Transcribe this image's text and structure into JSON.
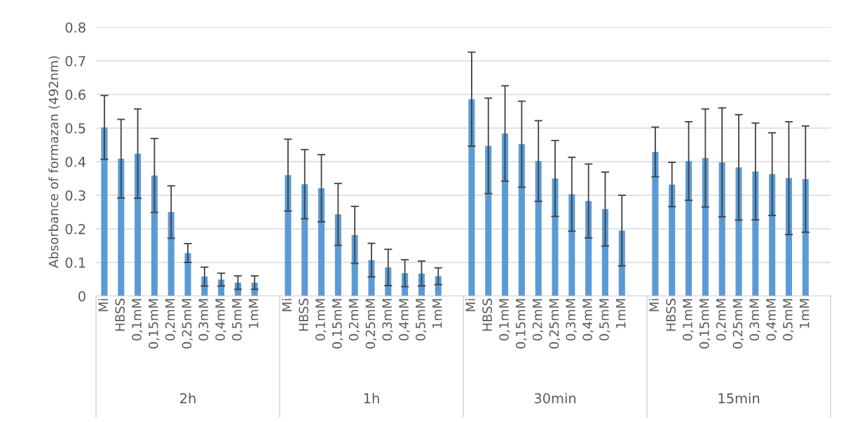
{
  "chart_data": {
    "type": "bar",
    "ylabel": "Absorbance of formazan (492nm)",
    "categories": [
      "Mi",
      "HBSS",
      "0,1mM",
      "0,15mM",
      "0,2mM",
      "0,25mM",
      "0,3mM",
      "0,4mM",
      "0,5mM",
      "1mM",
      null,
      "Mi",
      "HBSS",
      "0,1mM",
      "0,15mM",
      "0,2mM",
      "0,25mM",
      "0,3mM",
      "0,4mM",
      "0,5mM",
      "1mM",
      null,
      "Mi",
      "HBSS",
      "0,1mM",
      "0,15mM",
      "0,2mM",
      "0,25mM",
      "0,3mM",
      "0,4mM",
      "0,5mM",
      "1mM",
      null,
      "Mi",
      "HBSS",
      "0,1mM",
      "0,15mM",
      "0,2mM",
      "0,25mM",
      "0,3mM",
      "0,4mM",
      "0,5mM",
      "1mM",
      null
    ],
    "values": [
      0.502,
      0.409,
      0.424,
      0.359,
      0.25,
      0.128,
      0.058,
      0.049,
      0.04,
      0.04,
      null,
      0.36,
      0.333,
      0.321,
      0.243,
      0.182,
      0.107,
      0.085,
      0.068,
      0.067,
      0.059,
      null,
      0.586,
      0.447,
      0.484,
      0.452,
      0.402,
      0.35,
      0.303,
      0.283,
      0.259,
      0.195,
      null,
      0.429,
      0.332,
      0.402,
      0.411,
      0.398,
      0.383,
      0.371,
      0.363,
      0.351,
      0.348,
      null
    ],
    "errors": [
      0.095,
      0.117,
      0.133,
      0.11,
      0.078,
      0.028,
      0.028,
      0.019,
      0.02,
      0.02,
      null,
      0.107,
      0.103,
      0.1,
      0.092,
      0.085,
      0.05,
      0.054,
      0.04,
      0.037,
      0.025,
      null,
      0.14,
      0.142,
      0.142,
      0.128,
      0.12,
      0.113,
      0.11,
      0.11,
      0.11,
      0.105,
      null,
      0.074,
      0.066,
      0.117,
      0.146,
      0.162,
      0.157,
      0.144,
      0.123,
      0.168,
      0.158,
      null
    ],
    "color": "#5b9bd5",
    "ylim": [
      0,
      0.8
    ],
    "yticks": [
      {
        "value": 0,
        "label": "0"
      },
      0.1,
      0.2,
      0.3,
      0.4,
      0.5,
      0.6,
      0.7,
      0.8
    ],
    "grid": "y",
    "annotations": [
      "2h",
      "1h",
      "30min",
      "15min"
    ]
  }
}
